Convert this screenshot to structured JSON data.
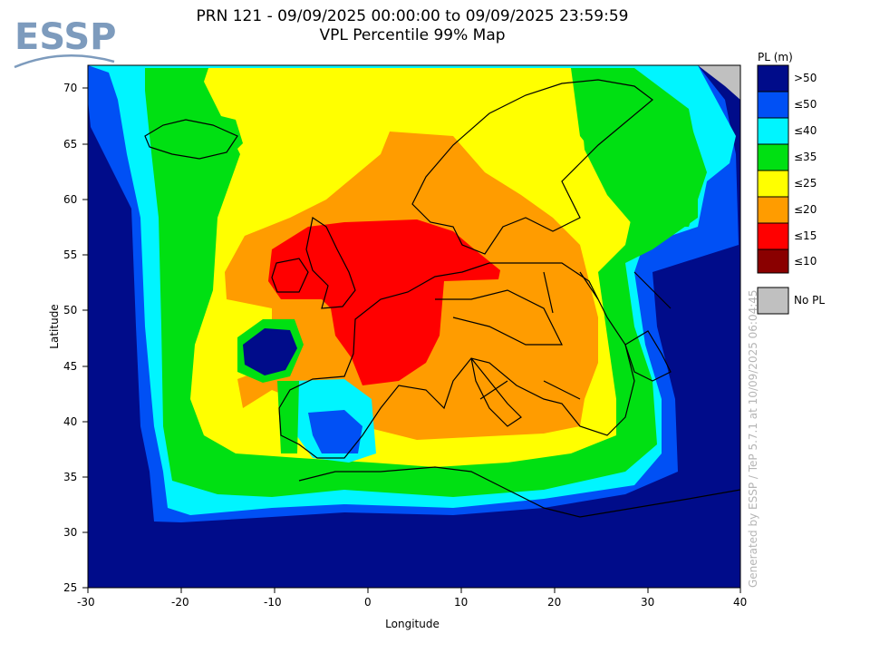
{
  "logo": {
    "text": "ESSP"
  },
  "title": {
    "line1": "PRN 121 - 09/09/2025 00:00:00 to 09/09/2025 23:59:59",
    "line2": "VPL Percentile 99% Map"
  },
  "axes": {
    "xlabel": "Longitude",
    "ylabel": "Latitude",
    "xlim": [
      -30,
      40
    ],
    "ylim": [
      25,
      72.5
    ],
    "xticks": [
      "-30",
      "-20",
      "-10",
      "0",
      "10",
      "20",
      "30",
      "40"
    ],
    "yticks": [
      "25",
      "30",
      "35",
      "40",
      "45",
      "50",
      "55",
      "60",
      "65",
      "70"
    ]
  },
  "legend": {
    "title": "PL (m)",
    "items": [
      {
        "label": ">50",
        "color": "#000c8a"
      },
      {
        "label": "≤50",
        "color": "#0050f5"
      },
      {
        "label": "≤40",
        "color": "#00f5ff"
      },
      {
        "label": "≤35",
        "color": "#00e012"
      },
      {
        "label": "≤25",
        "color": "#ffff00"
      },
      {
        "label": "≤20",
        "color": "#ff9c00"
      },
      {
        "label": "≤15",
        "color": "#ff0000"
      },
      {
        "label": "≤10",
        "color": "#8a0000"
      }
    ],
    "no_pl": {
      "label": "No PL",
      "color": "#c0c0c0"
    }
  },
  "credit": "Generated by ESSP / TeP 5.7.1 at 10/09/2025 06:04:45"
}
